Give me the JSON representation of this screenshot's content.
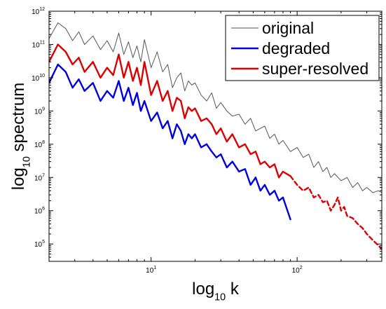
{
  "chart_data": {
    "type": "line",
    "title": "",
    "xlabel": {
      "base": "log",
      "sub": "10",
      "rest": " k"
    },
    "ylabel": {
      "base": "log",
      "sub": "10",
      "rest": " spectrum"
    },
    "xscale": "log",
    "yscale": "log",
    "xlim": [
      2,
      380
    ],
    "ylim": [
      30000,
      1000000000000
    ],
    "xticks": [
      {
        "value": 10,
        "base": "10",
        "exp": "1"
      },
      {
        "value": 100,
        "base": "10",
        "exp": "2"
      }
    ],
    "yticks": [
      {
        "value": 100000,
        "base": "10",
        "exp": "5"
      },
      {
        "value": 1000000,
        "base": "10",
        "exp": "6"
      },
      {
        "value": 10000000,
        "base": "10",
        "exp": "7"
      },
      {
        "value": 100000000,
        "base": "10",
        "exp": "8"
      },
      {
        "value": 1000000000,
        "base": "10",
        "exp": "9"
      },
      {
        "value": 10000000000,
        "base": "10",
        "exp": "10"
      },
      {
        "value": 100000000000,
        "base": "10",
        "exp": "11"
      },
      {
        "value": 1000000000000,
        "base": "10",
        "exp": "12"
      }
    ],
    "grid": false,
    "legend_position": "top-right",
    "series": [
      {
        "name": "original",
        "color": "#555555",
        "style": "solid",
        "x": [
          2,
          2.3,
          2.6,
          2.9,
          3.2,
          3.5,
          4,
          4.5,
          5,
          5.5,
          6,
          6.5,
          7,
          7.5,
          8,
          8.5,
          9,
          10,
          11,
          12,
          13,
          14,
          15,
          16,
          17,
          18,
          19,
          20,
          22,
          24,
          26,
          28,
          30,
          33,
          36,
          40,
          44,
          48,
          52,
          56,
          60,
          65,
          70,
          75,
          80,
          90,
          100,
          110,
          120,
          130,
          140,
          150,
          160,
          170,
          180,
          200,
          220,
          240,
          260,
          280,
          300,
          330,
          360,
          380
        ],
        "y": [
          150000000000.0,
          450000000000.0,
          300000000000.0,
          130000000000.0,
          240000000000.0,
          100000000000.0,
          180000000000.0,
          70000000000.0,
          130000000000.0,
          60000000000.0,
          220000000000.0,
          50000000000.0,
          120000000000.0,
          40000000000.0,
          90000000000.0,
          30000000000.0,
          140000000000.0,
          20000000000.0,
          60000000000.0,
          15000000000.0,
          25000000000.0,
          5000000000.0,
          10000000000.0,
          14000000000.0,
          4000000000.0,
          8000000000.0,
          6000000000.0,
          7000000000.0,
          3000000000.0,
          2000000000.0,
          3500000000.0,
          1200000000.0,
          1800000000.0,
          1000000000.0,
          700000000.0,
          800000000.0,
          400000000.0,
          600000000.0,
          250000000.0,
          300000000.0,
          350000000.0,
          150000000.0,
          200000000.0,
          100000000.0,
          130000000.0,
          60000000.0,
          80000000.0,
          40000000.0,
          50000000.0,
          20000000.0,
          30000000.0,
          15000000.0,
          20000000.0,
          10000000.0,
          13000000.0,
          8000000.0,
          10000000.0,
          5000000.0,
          7000000.0,
          4000000.0,
          5000000.0,
          3500000.0,
          4000000.0,
          3500000.0
        ]
      },
      {
        "name": "degraded",
        "color": "#0000dd",
        "style": "solid",
        "x": [
          2,
          2.3,
          2.6,
          2.9,
          3.2,
          3.5,
          4,
          4.5,
          5,
          5.5,
          6,
          6.5,
          7,
          7.5,
          8,
          8.5,
          9,
          10,
          11,
          12,
          13,
          14,
          15,
          16,
          17,
          18,
          19,
          20,
          22,
          24,
          26,
          28,
          30,
          33,
          36,
          40,
          44,
          48,
          52,
          56,
          60,
          65,
          70,
          75,
          80,
          90
        ],
        "y": [
          7000000000.0,
          25000000000.0,
          15000000000.0,
          5000000000.0,
          9000000000.0,
          4000000000.0,
          7000000000.0,
          2000000000.0,
          4000000000.0,
          2500000000.0,
          8000000000.0,
          2000000000.0,
          5000000000.0,
          1500000000.0,
          3500000000.0,
          1000000000.0,
          2000000000.0,
          500000000.0,
          900000000.0,
          300000000.0,
          500000000.0,
          150000000.0,
          400000000.0,
          250000000.0,
          100000000.0,
          200000000.0,
          150000000.0,
          200000000.0,
          80000000.0,
          100000000.0,
          60000000.0,
          40000000.0,
          50000000.0,
          20000000.0,
          30000000.0,
          15000000.0,
          18000000.0,
          6000000.0,
          10000000.0,
          4000000.0,
          6000000.0,
          3000000.0,
          4000000.0,
          2000000.0,
          2500000.0,
          550000.0
        ]
      },
      {
        "name": "super-resolved",
        "color": "#dd0000",
        "style": "solid",
        "x": [
          2,
          2.3,
          2.6,
          2.9,
          3.2,
          3.5,
          4,
          4.5,
          5,
          5.5,
          6,
          6.5,
          7,
          7.5,
          8,
          8.5,
          9,
          10,
          11,
          12,
          13,
          14,
          15,
          16,
          17,
          18,
          19,
          20,
          22,
          24,
          26,
          28,
          30,
          33,
          36,
          40,
          44,
          48,
          52,
          56,
          60,
          65,
          70,
          75,
          80,
          90
        ],
        "y": [
          30000000000.0,
          100000000000.0,
          60000000000.0,
          25000000000.0,
          40000000000.0,
          15000000000.0,
          30000000000.0,
          10000000000.0,
          20000000000.0,
          12000000000.0,
          50000000000.0,
          10000000000.0,
          30000000000.0,
          8000000000.0,
          20000000000.0,
          6000000000.0,
          30000000000.0,
          3000000000.0,
          8000000000.0,
          2000000000.0,
          4000000000.0,
          1000000000.0,
          2500000000.0,
          2000000000.0,
          600000000.0,
          1300000000.0,
          1000000000.0,
          1200000000.0,
          500000000.0,
          600000000.0,
          400000000.0,
          200000000.0,
          300000000.0,
          120000000.0,
          200000000.0,
          80000000.0,
          100000000.0,
          50000000.0,
          60000000.0,
          25000000.0,
          30000000.0,
          20000000.0,
          25000000.0,
          10000000.0,
          15000000.0,
          11000000.0
        ]
      },
      {
        "name": "",
        "color": "#dd0000",
        "style": "dashed",
        "x": [
          90,
          100,
          110,
          120,
          130,
          140,
          150,
          160,
          170,
          180,
          190,
          200,
          210,
          220,
          240,
          260,
          280,
          300,
          330,
          360,
          380
        ],
        "y": [
          11000000.0,
          6000000.0,
          4000000.0,
          5000000.0,
          2500000.0,
          3000000.0,
          1800000.0,
          2000000.0,
          1000000.0,
          1500000.0,
          2500000.0,
          1000000.0,
          1300000.0,
          700000.0,
          600000.0,
          400000.0,
          300000.0,
          200000.0,
          130000.0,
          90000.0,
          70000.0
        ]
      }
    ]
  }
}
